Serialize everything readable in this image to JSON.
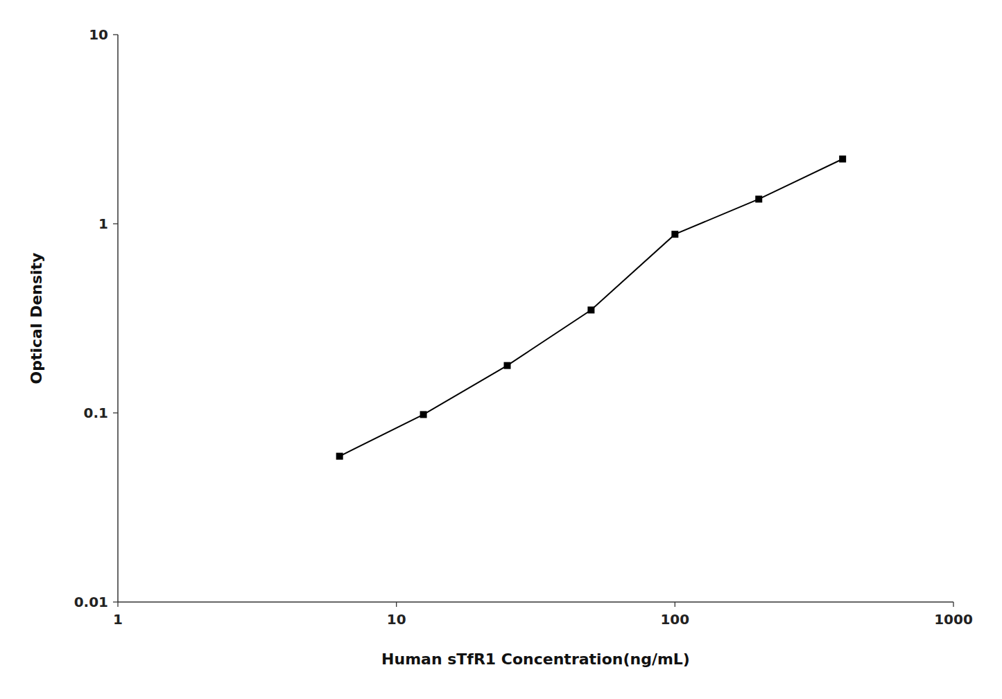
{
  "chart_data": {
    "type": "line",
    "xlabel": "Human sTfR1 Concentration(ng/mL)",
    "ylabel": "Optical Density",
    "x": [
      6.25,
      12.5,
      25,
      50,
      100,
      200,
      400
    ],
    "values": [
      0.059,
      0.098,
      0.178,
      0.35,
      0.88,
      1.35,
      2.2
    ],
    "color": "#000000",
    "marker": "square",
    "xlim": [
      1,
      1000
    ],
    "ylim": [
      0.01,
      10
    ],
    "xticks": [
      1,
      10,
      100,
      1000
    ],
    "yticks": [
      0.01,
      0.1,
      1,
      10
    ],
    "log": true,
    "grid": false
  }
}
